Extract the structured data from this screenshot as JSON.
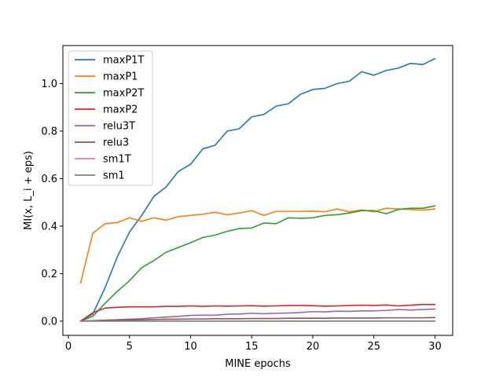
{
  "chart_data": {
    "type": "line",
    "xlabel": "MINE epochs",
    "ylabel": "MI(x, L_i + eps)",
    "xlim": [
      -0.45,
      31.45
    ],
    "ylim": [
      -0.06,
      1.16
    ],
    "xticks": [
      0,
      5,
      10,
      15,
      20,
      25,
      30
    ],
    "yticks": [
      0.0,
      0.2,
      0.4,
      0.6,
      0.8,
      1.0
    ],
    "ytick_labels": [
      "0.0",
      "0.2",
      "0.4",
      "0.6",
      "0.8",
      "1.0"
    ],
    "grid": false,
    "legend_position": "top-left",
    "x": [
      1,
      2,
      3,
      4,
      5,
      6,
      7,
      8,
      9,
      10,
      11,
      12,
      13,
      14,
      15,
      16,
      17,
      18,
      19,
      20,
      21,
      22,
      23,
      24,
      25,
      26,
      27,
      28,
      29,
      30
    ],
    "series": [
      {
        "name": "maxP1T",
        "color": "#1f77b4",
        "values": [
          0.0,
          0.03,
          0.14,
          0.27,
          0.375,
          0.445,
          0.525,
          0.565,
          0.63,
          0.66,
          0.725,
          0.74,
          0.8,
          0.81,
          0.86,
          0.87,
          0.905,
          0.915,
          0.955,
          0.975,
          0.98,
          1.0,
          1.01,
          1.05,
          1.035,
          1.055,
          1.065,
          1.085,
          1.08,
          1.105
        ]
      },
      {
        "name": "maxP1",
        "color": "#ff7f0e",
        "values": [
          0.16,
          0.37,
          0.41,
          0.415,
          0.435,
          0.42,
          0.435,
          0.425,
          0.44,
          0.445,
          0.45,
          0.458,
          0.448,
          0.455,
          0.465,
          0.445,
          0.462,
          0.462,
          0.462,
          0.463,
          0.46,
          0.472,
          0.46,
          0.468,
          0.46,
          0.475,
          0.472,
          0.47,
          0.467,
          0.472
        ]
      },
      {
        "name": "maxP2T",
        "color": "#2ca02c",
        "values": [
          0.0,
          0.02,
          0.075,
          0.125,
          0.17,
          0.225,
          0.255,
          0.29,
          0.31,
          0.33,
          0.352,
          0.362,
          0.378,
          0.39,
          0.392,
          0.413,
          0.41,
          0.435,
          0.433,
          0.435,
          0.445,
          0.448,
          0.455,
          0.465,
          0.465,
          0.452,
          0.47,
          0.475,
          0.475,
          0.485
        ]
      },
      {
        "name": "maxP2",
        "color": "#d62728",
        "values": [
          0.0,
          0.035,
          0.055,
          0.058,
          0.06,
          0.06,
          0.06,
          0.062,
          0.062,
          0.064,
          0.062,
          0.064,
          0.063,
          0.064,
          0.065,
          0.063,
          0.064,
          0.066,
          0.066,
          0.065,
          0.063,
          0.064,
          0.066,
          0.067,
          0.066,
          0.068,
          0.064,
          0.067,
          0.07,
          0.07
        ]
      },
      {
        "name": "relu3T",
        "color": "#9467bd",
        "values": [
          0.0,
          0.002,
          0.004,
          0.006,
          0.008,
          0.01,
          0.014,
          0.017,
          0.02,
          0.024,
          0.025,
          0.025,
          0.029,
          0.03,
          0.033,
          0.031,
          0.033,
          0.034,
          0.036,
          0.04,
          0.039,
          0.042,
          0.041,
          0.043,
          0.043,
          0.045,
          0.049,
          0.047,
          0.049,
          0.051
        ]
      },
      {
        "name": "relu3",
        "color": "#8c564b",
        "values": [
          0.0,
          0.001,
          0.003,
          0.004,
          0.005,
          0.006,
          0.007,
          0.008,
          0.008,
          0.009,
          0.009,
          0.01,
          0.01,
          0.01,
          0.011,
          0.011,
          0.011,
          0.012,
          0.012,
          0.012,
          0.012,
          0.013,
          0.013,
          0.013,
          0.013,
          0.014,
          0.014,
          0.014,
          0.014,
          0.015
        ]
      },
      {
        "name": "sm1T",
        "color": "#e377c2",
        "values": [
          0.0,
          0.0,
          0.0,
          0.0,
          0.0,
          0.0,
          0.0,
          0.0,
          0.0,
          0.0,
          0.0,
          0.0,
          0.0,
          0.0,
          0.0,
          0.0,
          0.0,
          0.0,
          0.0,
          0.0,
          0.0,
          0.0,
          0.0,
          0.0,
          0.0,
          0.0,
          0.0,
          0.0,
          0.0,
          0.0
        ]
      },
      {
        "name": "sm1",
        "color": "#7f7f7f",
        "values": [
          0.0,
          0.0,
          0.0,
          0.0,
          0.0,
          0.0,
          0.0,
          0.0,
          0.0,
          0.0,
          0.0,
          0.0,
          0.0,
          0.0,
          0.0,
          0.0,
          0.0,
          0.0,
          0.0,
          0.0,
          0.0,
          0.0,
          0.0,
          0.0,
          0.0,
          0.0,
          0.0,
          0.0,
          0.0,
          0.0
        ]
      }
    ]
  }
}
